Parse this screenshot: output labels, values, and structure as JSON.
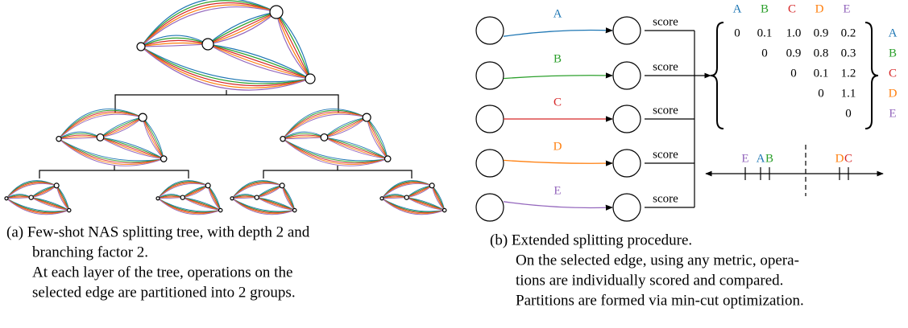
{
  "panel_a": {
    "caption": [
      "(a) Few-shot NAS splitting tree, with depth 2 and",
      "branching factor 2.",
      "At each layer of the tree, operations on the",
      "selected edge are partitioned into 2 groups."
    ]
  },
  "panel_b": {
    "edges": [
      {
        "label": "A",
        "color": "#1f77b4"
      },
      {
        "label": "B",
        "color": "#2ca02c"
      },
      {
        "label": "C",
        "color": "#d62728"
      },
      {
        "label": "D",
        "color": "#ff7f0e"
      },
      {
        "label": "E",
        "color": "#9467bd"
      }
    ],
    "score_label": "score",
    "matrix": {
      "rows": [
        [
          "0",
          "0.1",
          "1.0",
          "0.9",
          "0.2"
        ],
        [
          "0",
          "0.9",
          "0.8",
          "0.3"
        ],
        [
          "0",
          "0.1",
          "1.2"
        ],
        [
          "0",
          "1.1"
        ],
        [
          "0"
        ]
      ]
    },
    "number_line": [
      "E",
      "A",
      "B",
      "D",
      "C"
    ],
    "caption": [
      "(b) Extended splitting procedure.",
      "On the selected edge, using any metric, opera-",
      "tions are individually scored and compared.",
      "Partitions are formed via min-cut optimization."
    ]
  }
}
